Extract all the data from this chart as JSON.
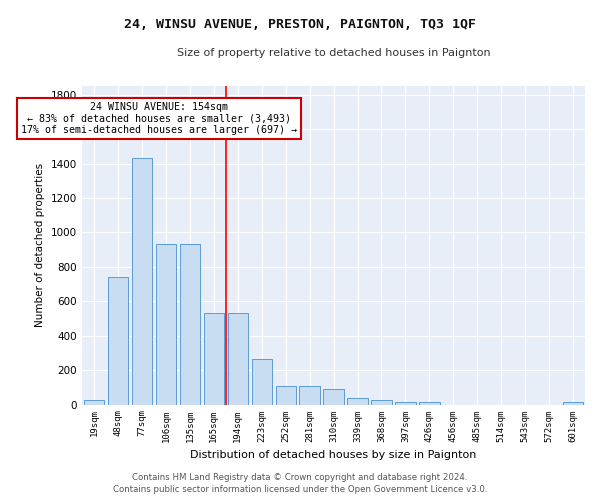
{
  "title": "24, WINSU AVENUE, PRESTON, PAIGNTON, TQ3 1QF",
  "subtitle": "Size of property relative to detached houses in Paignton",
  "xlabel": "Distribution of detached houses by size in Paignton",
  "ylabel": "Number of detached properties",
  "footer1": "Contains HM Land Registry data © Crown copyright and database right 2024.",
  "footer2": "Contains public sector information licensed under the Open Government Licence v3.0.",
  "bar_labels": [
    "19sqm",
    "48sqm",
    "77sqm",
    "106sqm",
    "135sqm",
    "165sqm",
    "194sqm",
    "223sqm",
    "252sqm",
    "281sqm",
    "310sqm",
    "339sqm",
    "368sqm",
    "397sqm",
    "426sqm",
    "456sqm",
    "485sqm",
    "514sqm",
    "543sqm",
    "572sqm",
    "601sqm"
  ],
  "bar_values": [
    25,
    740,
    1430,
    935,
    935,
    530,
    530,
    265,
    110,
    110,
    90,
    40,
    25,
    15,
    15,
    0,
    0,
    0,
    0,
    0,
    15
  ],
  "bar_color": "#c9ddf2",
  "bar_edge_color": "#5b9bd5",
  "bg_color": "#e8eef8",
  "red_line_x": 5.5,
  "annotation_text": "  24 WINSU AVENUE: 154sqm  \n← 83% of detached houses are smaller (3,493)\n17% of semi-detached houses are larger (697) →",
  "annotation_box_color": "#ffffff",
  "annotation_box_edge": "#cc0000",
  "ylim": [
    0,
    1850
  ],
  "yticks": [
    0,
    200,
    400,
    600,
    800,
    1000,
    1200,
    1400,
    1600,
    1800
  ]
}
